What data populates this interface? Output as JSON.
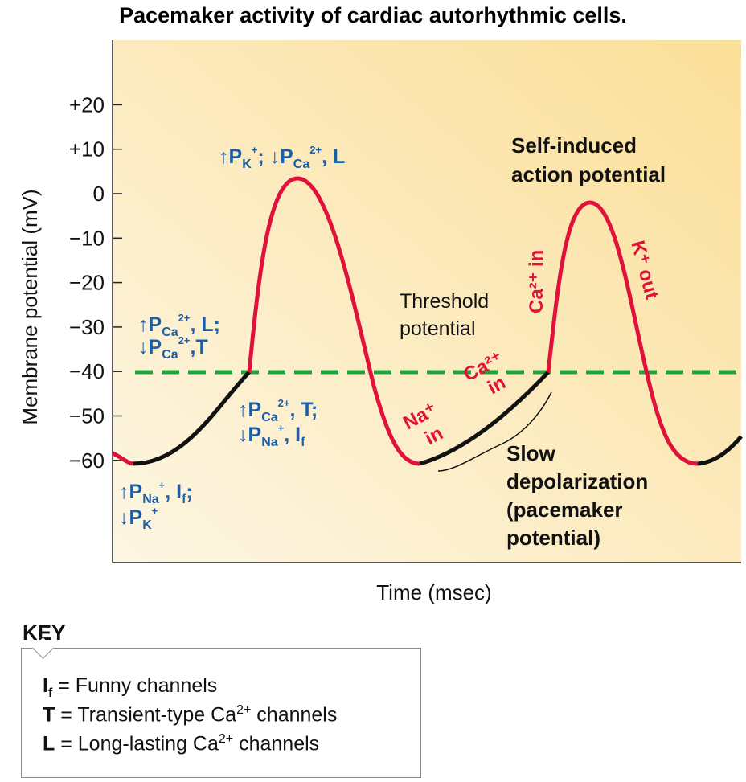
{
  "title": "Pacemaker activity of cardiac autorhythmic cells.",
  "axes": {
    "ylabel": "Membrane potential (mV)",
    "xlabel": "Time (msec)",
    "yticks": [
      {
        "value": 20,
        "label": "+20"
      },
      {
        "value": 10,
        "label": "+10"
      },
      {
        "value": 0,
        "label": "0"
      },
      {
        "value": -10,
        "label": "−10"
      },
      {
        "value": -20,
        "label": "−20"
      },
      {
        "value": -30,
        "label": "−30"
      },
      {
        "value": -40,
        "label": "−40"
      },
      {
        "value": -50,
        "label": "−50"
      },
      {
        "value": -60,
        "label": "−60"
      }
    ]
  },
  "threshold": {
    "value": -40,
    "label_line1": "Threshold",
    "label_line2": "potential"
  },
  "annotations": {
    "self_induced_line1": "Self-induced",
    "self_induced_line2": "action potential",
    "slow_line1": "Slow",
    "slow_line2": "depolarization",
    "slow_line3": "(pacemaker",
    "slow_line4": "potential)",
    "ca_in": "Ca²⁺ in",
    "k_out": "K⁺ out",
    "na_in_1": "Na⁺",
    "na_in_2": "in",
    "ca_in2_1": "Ca²⁺",
    "ca_in2_2": "in"
  },
  "permeability": {
    "peak": {
      "l1_a": "↑P",
      "l1_sub": "K",
      "l1_sup": "+",
      "l1_b": "; ↓P",
      "l1_sub2": "Ca",
      "l1_sup2": "2+",
      "l1_c": ", L"
    },
    "rise": {
      "l1_a": "↑P",
      "l1_sub": "Ca",
      "l1_sup": "2+",
      "l1_b": ", L;",
      "l2_a": "↓P",
      "l2_sub": "Ca",
      "l2_sup": "2+",
      "l2_b": ",T"
    },
    "fall": {
      "l1_a": "↑P",
      "l1_sub": "Ca",
      "l1_sup": "2+",
      "l1_b": ", T;",
      "l2_a": "↓P",
      "l2_sub": "Na",
      "l2_sup": "+",
      "l2_b": ", I",
      "l2_sub2": "f"
    },
    "trough": {
      "l1_a": "↑P",
      "l1_sub": "Na",
      "l1_sup": "+",
      "l1_b": ", I",
      "l1_sub2": "f",
      "l1_c": ";",
      "l2_a": "↓P",
      "l2_sub": "K",
      "l2_sup": "+"
    }
  },
  "key": {
    "title": "KEY",
    "rows": [
      {
        "symbol": "I",
        "sub": "f",
        "text": " = Funny channels",
        "sup": "",
        "tail": ""
      },
      {
        "symbol": "T",
        "sub": "",
        "text": " = Transient-type Ca",
        "sup": "2+",
        "tail": " channels"
      },
      {
        "symbol": "L",
        "sub": "",
        "text": " = Long-lasting Ca",
        "sup": "2+",
        "tail": " channels"
      }
    ]
  },
  "colors": {
    "background_top": "#fbe3a2",
    "background_bottom": "#fdf3dc",
    "action_potential": "#e0123a",
    "pacemaker": "#111111",
    "threshold_line": "#22a23a",
    "permeability_text": "#1b5fa8"
  }
}
